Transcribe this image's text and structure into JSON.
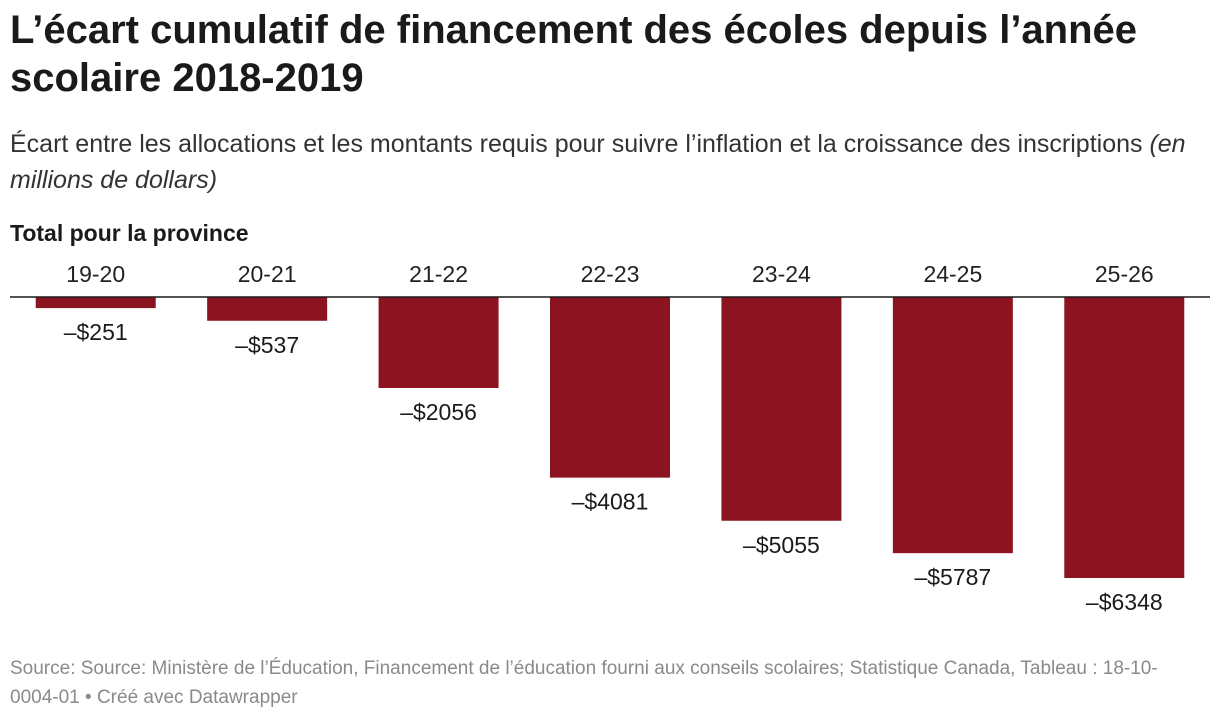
{
  "title": "L’écart cumulatif de financement des écoles depuis l’année scolaire 2018-2019",
  "subtitle": {
    "main": "Écart entre les allocations et les montants requis pour suivre l’inflation et la croissance des inscriptions",
    "unit": "(en millions de dollars)"
  },
  "panel_title": "Total pour la province",
  "footer": {
    "source": "Source: Source: Ministère de l’Éducation, Financement de l’éducation fourni aux conseils scolaires; Statistique Canada, Tableau : 18-10-0004-01",
    "credit": "Créé avec Datawrapper",
    "separator": "•"
  },
  "colors": {
    "bar": "#8c1420",
    "axis": "#1a1a1a"
  },
  "chart_data": {
    "type": "bar",
    "title": "Total pour la province",
    "categories": [
      "19-20",
      "20-21",
      "21-22",
      "22-23",
      "23-24",
      "24-25",
      "25-26"
    ],
    "values": [
      -251,
      -537,
      -2056,
      -4081,
      -5055,
      -5787,
      -6348
    ],
    "labels": [
      "–$251",
      "–$537",
      "–$2056",
      "–$4081",
      "–$5055",
      "–$5787",
      "–$6348"
    ],
    "unit": "millions de dollars",
    "ylim": [
      -6348,
      0
    ],
    "xlabel": "",
    "ylabel": "",
    "grid": false,
    "legend": "none"
  }
}
